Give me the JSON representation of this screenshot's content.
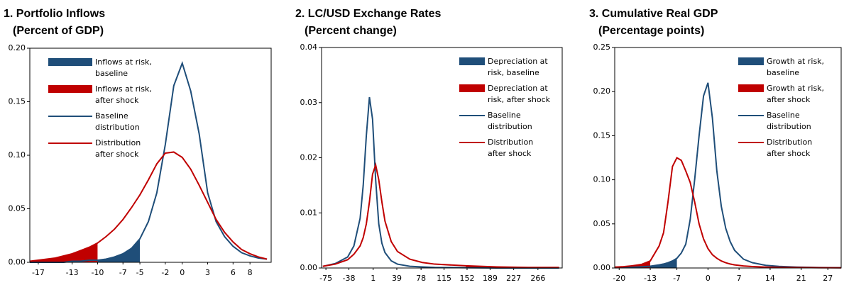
{
  "chart_data": [
    {
      "type": "line",
      "title": "1.  Portfolio Inflows",
      "subtitle": "(Percent of GDP)",
      "x": [
        -18,
        -17,
        -16,
        -15,
        -14,
        -13,
        -12,
        -11,
        -10,
        -9,
        -8,
        -7,
        -6,
        -5,
        -4,
        -3,
        -2,
        -1,
        0,
        1,
        2,
        3,
        4,
        5,
        6,
        7,
        8,
        9,
        10
      ],
      "series": [
        {
          "name": "Inflows at risk, baseline",
          "type": "area",
          "color": "#1f4e79",
          "values": [
            null,
            null,
            null,
            null,
            null,
            null,
            null,
            null,
            0.002,
            0.003,
            0.005,
            0.008,
            0.013,
            0.022,
            null,
            null,
            null,
            null,
            null,
            null,
            null,
            null,
            null,
            null,
            null,
            null,
            null,
            null,
            null
          ]
        },
        {
          "name": "Inflows at risk, after shock",
          "type": "area",
          "color": "#c00000",
          "values": [
            0.001,
            0.002,
            0.003,
            0.004,
            0.006,
            0.008,
            0.011,
            0.014,
            0.018,
            null,
            null,
            null,
            null,
            null,
            null,
            null,
            null,
            null,
            null,
            null,
            null,
            null,
            null,
            null,
            null,
            null,
            null,
            null,
            null
          ]
        },
        {
          "name": "Baseline distribution",
          "type": "line",
          "color": "#1f4e79",
          "values": [
            0,
            0,
            0,
            0,
            0,
            0.001,
            0.001,
            0.002,
            0.002,
            0.003,
            0.005,
            0.008,
            0.013,
            0.022,
            0.038,
            0.065,
            0.11,
            0.165,
            0.186,
            0.16,
            0.12,
            0.065,
            0.038,
            0.024,
            0.015,
            0.009,
            0.006,
            0.004,
            0.003
          ]
        },
        {
          "name": "Distribution after shock",
          "type": "line",
          "color": "#c00000",
          "values": [
            0.001,
            0.002,
            0.003,
            0.004,
            0.006,
            0.008,
            0.011,
            0.014,
            0.018,
            0.024,
            0.031,
            0.04,
            0.051,
            0.063,
            0.077,
            0.092,
            0.102,
            0.103,
            0.098,
            0.087,
            0.072,
            0.056,
            0.04,
            0.028,
            0.019,
            0.012,
            0.008,
            0.005,
            0.003
          ]
        }
      ],
      "xlim": [
        -18,
        10.5
      ],
      "xticks": [
        -17,
        -13,
        -10,
        -7,
        -5,
        -2,
        0,
        3,
        6,
        8
      ],
      "ylim": [
        0,
        0.2
      ],
      "yticks": [
        {
          "value": 0,
          "label": "0.00"
        },
        {
          "value": 0.05,
          "label": "0.05"
        },
        {
          "value": 0.1,
          "label": "0.10"
        },
        {
          "value": 0.15,
          "label": "0.15"
        },
        {
          "value": 0.2,
          "label": "0.20"
        }
      ],
      "legend": "upper left"
    },
    {
      "type": "line",
      "title": "2.  LC/USD Exchange Rates",
      "subtitle": "(Percent change)",
      "x": [
        -80,
        -60,
        -40,
        -30,
        -20,
        -15,
        -10,
        -5,
        0,
        5,
        10,
        15,
        20,
        30,
        40,
        60,
        80,
        100,
        150,
        200,
        250,
        300
      ],
      "series": [
        {
          "name": "Depreciation at risk, baseline",
          "type": "area",
          "color": "#1f4e79",
          "values": [
            null,
            null,
            null,
            null,
            null,
            null,
            null,
            null,
            null,
            null,
            null,
            null,
            null,
            null,
            null,
            null,
            null,
            null,
            5e-05,
            0,
            0,
            0
          ]
        },
        {
          "name": "Depreciation at risk, after shock",
          "type": "area",
          "color": "#c00000",
          "values": [
            null,
            null,
            null,
            null,
            null,
            null,
            null,
            null,
            null,
            null,
            null,
            null,
            null,
            null,
            null,
            null,
            null,
            null,
            0.0004,
            0.0002,
            0.0001,
            0.0001
          ]
        },
        {
          "name": "Baseline distribution",
          "type": "line",
          "color": "#1f4e79",
          "values": [
            0.0003,
            0.0008,
            0.002,
            0.004,
            0.009,
            0.015,
            0.024,
            0.031,
            0.027,
            0.016,
            0.008,
            0.0045,
            0.0028,
            0.0013,
            0.0007,
            0.0003,
            0.0002,
            0.0001,
            5e-05,
            0,
            0,
            0
          ]
        },
        {
          "name": "Distribution after shock",
          "type": "line",
          "color": "#c00000",
          "values": [
            0.0003,
            0.0007,
            0.0015,
            0.0025,
            0.004,
            0.0055,
            0.008,
            0.012,
            0.017,
            0.0187,
            0.016,
            0.012,
            0.0085,
            0.0048,
            0.003,
            0.0016,
            0.001,
            0.0007,
            0.0004,
            0.0002,
            0.0001,
            0.0001
          ]
        }
      ],
      "xlim": [
        -82,
        305
      ],
      "xticks": [
        -75,
        -38,
        1,
        39,
        78,
        115,
        152,
        189,
        227,
        266
      ],
      "ylim": [
        0,
        0.04
      ],
      "yticks": [
        {
          "value": 0,
          "label": "0.00"
        },
        {
          "value": 0.01,
          "label": "0.01"
        },
        {
          "value": 0.02,
          "label": "0.02"
        },
        {
          "value": 0.03,
          "label": "0.03"
        },
        {
          "value": 0.04,
          "label": "0.04"
        }
      ],
      "legend": "upper right"
    },
    {
      "type": "line",
      "title": "3.  Cumulative Real GDP",
      "subtitle": "(Percentage points)",
      "x": [
        -21,
        -19,
        -17,
        -15,
        -13,
        -11,
        -10,
        -9,
        -8,
        -7,
        -6,
        -5,
        -4,
        -3,
        -2,
        -1,
        0,
        1,
        2,
        3,
        4,
        5,
        6,
        8,
        10,
        13,
        16,
        20,
        25,
        30
      ],
      "series": [
        {
          "name": "Growth at risk, baseline",
          "type": "area",
          "color": "#1f4e79",
          "values": [
            null,
            null,
            null,
            null,
            0.002,
            0.0035,
            0.0045,
            0.006,
            0.008,
            0.011,
            null,
            null,
            null,
            null,
            null,
            null,
            null,
            null,
            null,
            null,
            null,
            null,
            null,
            null,
            null,
            null,
            null,
            null,
            null,
            null
          ]
        },
        {
          "name": "Growth at risk, after shock",
          "type": "area",
          "color": "#c00000",
          "values": [
            0.001,
            0.0015,
            0.0025,
            0.004,
            0.008,
            null,
            null,
            null,
            null,
            null,
            null,
            null,
            null,
            null,
            null,
            null,
            null,
            null,
            null,
            null,
            null,
            null,
            null,
            null,
            null,
            null,
            null,
            null,
            null,
            null
          ]
        },
        {
          "name": "Baseline distribution",
          "type": "line",
          "color": "#1f4e79",
          "values": [
            0.0003,
            0.0005,
            0.0008,
            0.0013,
            0.002,
            0.0035,
            0.0045,
            0.006,
            0.008,
            0.011,
            0.017,
            0.027,
            0.055,
            0.1,
            0.15,
            0.195,
            0.21,
            0.17,
            0.11,
            0.07,
            0.045,
            0.03,
            0.02,
            0.01,
            0.006,
            0.003,
            0.0018,
            0.001,
            0.0005,
            0.0003
          ]
        },
        {
          "name": "Distribution after shock",
          "type": "line",
          "color": "#c00000",
          "values": [
            0.001,
            0.0015,
            0.0025,
            0.004,
            0.008,
            0.025,
            0.04,
            0.075,
            0.115,
            0.125,
            0.122,
            0.11,
            0.097,
            0.075,
            0.05,
            0.033,
            0.022,
            0.015,
            0.011,
            0.008,
            0.006,
            0.0045,
            0.0035,
            0.0023,
            0.0016,
            0.001,
            0.0007,
            0.0005,
            0.0003,
            0.0002
          ]
        }
      ],
      "xlim": [
        -21,
        30
      ],
      "xticks": [
        -20,
        -13,
        -7,
        0,
        7,
        14,
        21,
        27
      ],
      "ylim": [
        0,
        0.25
      ],
      "yticks": [
        {
          "value": 0,
          "label": "0.00"
        },
        {
          "value": 0.05,
          "label": "0.05"
        },
        {
          "value": 0.1,
          "label": "0.10"
        },
        {
          "value": 0.15,
          "label": "0.15"
        },
        {
          "value": 0.2,
          "label": "0.20"
        },
        {
          "value": 0.25,
          "label": "0.25"
        }
      ],
      "legend": "upper right"
    }
  ]
}
